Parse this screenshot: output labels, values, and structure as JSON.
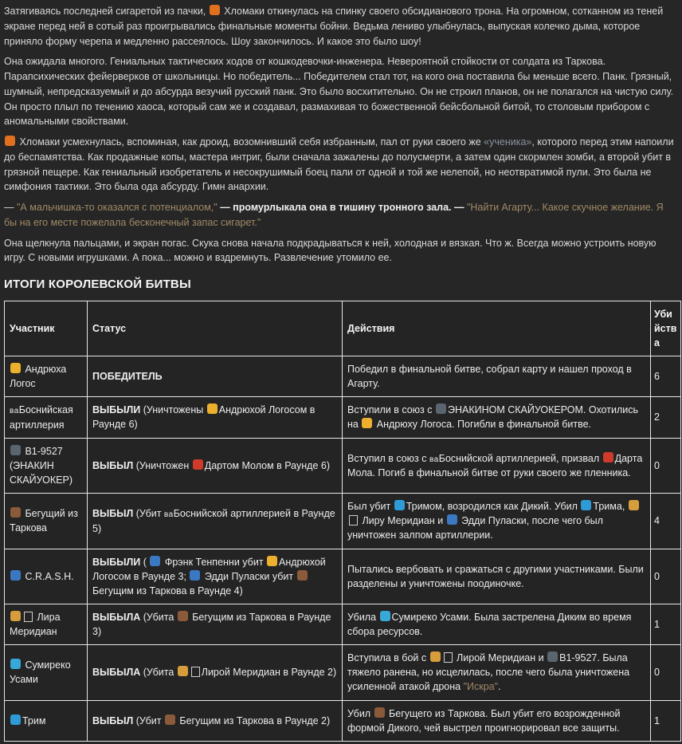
{
  "colors": {
    "background": "#262626",
    "outer_edge": "#161616",
    "body_text": "#d9d9d9",
    "bold_text": "#f0f0f0",
    "quote_text": "#a08a66",
    "link_text": "#8b92a1",
    "table_border": "#e8e8e8"
  },
  "story": {
    "paragraphs": [
      {
        "segments": [
          {
            "text": "Затягиваясь последней сигаретой из пачки, "
          },
          {
            "emoji": "🎃",
            "name": "pumpkin-emoji"
          },
          {
            "text": " Хломаки откинулась на спинку своего обсидианового трона. На огромном, сотканном из теней экране перед ней в сотый раз проигрывались финальные моменты бойни. Ведьма лениво улыбнулась, выпуская колечко дыма, которое приняло форму черепа и медленно рассеялось. Шоу закончилось. И какое это было шоу!"
          }
        ]
      },
      {
        "segments": [
          {
            "text": "Она ожидала многого. Гениальных тактических ходов от кошкодевочки-инженера. Невероятной стойкости от солдата из Таркова. Парапсихических фейерверков от школьницы. Но победитель... Победителем стал тот, на кого она поставила бы меньше всего. Панк. Грязный, шумный, непредсказуемый и до абсурда везучий русский панк. Это было восхитительно. Он не строил планов, он не полагался на чистую силу. Он просто плыл по течению хаоса, который сам же и создавал, размахивая то божественной бейсбольной битой, то столовым прибором с аномальными свойствами."
          }
        ]
      },
      {
        "segments": [
          {
            "emoji": "🎃",
            "name": "pumpkin-emoji"
          },
          {
            "text": " Хломаки усмехнулась, вспоминая, как дроид, возомнивший себя избранным, пал от руки своего же "
          },
          {
            "text": "«ученика»",
            "style": "link",
            "name": "inline-link"
          },
          {
            "text": ", которого перед этим напоили до беспамятства. Как продажные копы, мастера интриг, были сначала зажалены до полусмерти, а затем один скормлен зомби, а второй убит в грязной пещере. Как гениальный изобретатель и несокрушимый боец пали от одной и той же нелепой, но неотвратимой пули. Это была не симфония тактики. Это была ода абсурду. Гимн анархии."
          }
        ]
      },
      {
        "segments": [
          {
            "text": "— "
          },
          {
            "text": "\"А мальчишка-то оказался с потенциалом,\"",
            "style": "quote"
          },
          {
            "text": " — промурлыкала она в тишину тронного зала. — ",
            "style": "bold"
          },
          {
            "text": "\"Найти Агарту... Какое скучное желание. Я бы на его месте пожелала бесконечный запас сигарет.\"",
            "style": "quote"
          }
        ]
      },
      {
        "segments": [
          {
            "text": "Она щелкнула пальцами, и экран погас. Скука снова начала подкрадываться к ней, холодная и вязкая. Что ж. Всегда можно устроить новую игру. С новыми игрушками. А пока... можно и вздремнуть. Развлечение утомило ее."
          }
        ]
      }
    ]
  },
  "table": {
    "title": "ИТОГИ КОРОЛЕВСКОЙ БИТВЫ",
    "columns": [
      "Участник",
      "Статус",
      "Действия",
      "Убийства"
    ],
    "rows": [
      {
        "participant": [
          {
            "emoji": "🍺",
            "name": "beer-emoji"
          },
          {
            "text": " Андрюха Логос"
          }
        ],
        "status": [
          {
            "text": "ПОБЕДИТЕЛЬ",
            "style": "bold"
          }
        ],
        "actions": [
          {
            "text": "Победил в финальной битве, собрал карту и нашел проход в Агарту."
          }
        ],
        "kills": "6"
      },
      {
        "participant": [
          {
            "text": "ва",
            "style": "flag",
            "name": "flag-ba"
          },
          {
            "text": "Боснийская артиллерия"
          }
        ],
        "status": [
          {
            "text": "ВЫБЫЛИ",
            "style": "bold"
          },
          {
            "text": " (Уничтожены "
          },
          {
            "emoji": "🍺",
            "name": "beer-emoji"
          },
          {
            "text": "Андрюхой Логосом в Раунде 6)"
          }
        ],
        "actions": [
          {
            "text": "Вступили в союз с "
          },
          {
            "emoji": "🤖",
            "name": "robot-emoji"
          },
          {
            "text": "ЭНАКИНОМ СКАЙУОКЕРОМ. Охотились на "
          },
          {
            "emoji": "🍺",
            "name": "beer-emoji"
          },
          {
            "text": " Андрюху Логоса. Погибли в финальной битве."
          }
        ],
        "kills": "2"
      },
      {
        "participant": [
          {
            "emoji": "🤖",
            "name": "robot-emoji"
          },
          {
            "text": " B1-9527 (ЭНАКИН СКАЙУОКЕР)"
          }
        ],
        "status": [
          {
            "text": "ВЫБЫЛ",
            "style": "bold"
          },
          {
            "text": " (Уничтожен "
          },
          {
            "emoji": "👿",
            "name": "devil-emoji"
          },
          {
            "text": "Дартом Молом в Раунде 6)"
          }
        ],
        "actions": [
          {
            "text": "Вступил в союз с "
          },
          {
            "text": "ва",
            "style": "flag",
            "name": "flag-ba"
          },
          {
            "text": "Боснийской артиллерией, призвал "
          },
          {
            "emoji": "👿",
            "name": "devil-emoji"
          },
          {
            "text": "Дарта Мола. Погиб в финальной битве от руки своего же пленника."
          }
        ],
        "kills": "0"
      },
      {
        "participant": [
          {
            "emoji": "🐻",
            "name": "bear-emoji"
          },
          {
            "text": " Бегущий из Таркова"
          }
        ],
        "status": [
          {
            "text": "ВЫБЫЛ",
            "style": "bold"
          },
          {
            "text": " (Убит "
          },
          {
            "text": "ва",
            "style": "flag",
            "name": "flag-ba"
          },
          {
            "text": "Боснийской артиллерией в Раунде 5)"
          }
        ],
        "actions": [
          {
            "text": "Был убит "
          },
          {
            "emoji": "🌊",
            "name": "wave-emoji"
          },
          {
            "text": "Тримом, возродился как Дикий. Убил "
          },
          {
            "emoji": "🌊",
            "name": "wave-emoji"
          },
          {
            "text": "Трима, "
          },
          {
            "emoji": "🐎",
            "name": "horse-emoji"
          },
          {
            "tofu": true
          },
          {
            "text": " Лиру Меридиан и "
          },
          {
            "emoji": "🚔",
            "name": "police-car-emoji"
          },
          {
            "text": " Эдди Пуласки, после чего был уничтожен залпом артиллерии."
          }
        ],
        "kills": "4"
      },
      {
        "participant": [
          {
            "emoji": "🚔",
            "name": "police-car-emoji"
          },
          {
            "text": " C.R.A.S.H."
          }
        ],
        "status": [
          {
            "text": "ВЫБЫЛИ",
            "style": "bold"
          },
          {
            "text": " ( "
          },
          {
            "emoji": "🚔",
            "name": "police-car-emoji"
          },
          {
            "text": " Фрэнк Тенпенни убит "
          },
          {
            "emoji": "🍺",
            "name": "beer-emoji"
          },
          {
            "text": "Андрюхой Логосом в Раунде 3; "
          },
          {
            "emoji": "🚔",
            "name": "police-car-emoji"
          },
          {
            "text": " Эдди Пуласки убит "
          },
          {
            "emoji": "🐻",
            "name": "bear-emoji"
          },
          {
            "text": "Бегущим из Таркова в Раунде 4)"
          }
        ],
        "actions": [
          {
            "text": "Пытались вербовать и сражаться с другими участниками. Были разделены и уничтожены поодиночке."
          }
        ],
        "kills": "0"
      },
      {
        "participant": [
          {
            "emoji": "🐎",
            "name": "horse-emoji"
          },
          {
            "tofu": true
          },
          {
            "text": " Лира Меридиан"
          }
        ],
        "status": [
          {
            "text": "ВЫБЫЛА",
            "style": "bold"
          },
          {
            "text": " (Убита "
          },
          {
            "emoji": "🐻",
            "name": "bear-emoji"
          },
          {
            "text": " Бегущим из Таркова в Раунде 3)"
          }
        ],
        "actions": [
          {
            "text": "Убила "
          },
          {
            "emoji": "📱",
            "name": "phone-emoji"
          },
          {
            "text": "Сумиреко Усами. Была застрелена Диким во время сбора ресурсов."
          }
        ],
        "kills": "1"
      },
      {
        "participant": [
          {
            "emoji": "📱",
            "name": "phone-emoji"
          },
          {
            "text": " Сумиреко Усами"
          }
        ],
        "status": [
          {
            "text": "ВЫБЫЛА",
            "style": "bold"
          },
          {
            "text": " (Убита "
          },
          {
            "emoji": "🐎",
            "name": "horse-emoji"
          },
          {
            "tofu": true
          },
          {
            "text": "Лирой Меридиан в Раунде 2)"
          }
        ],
        "actions": [
          {
            "text": "Вступила в бой с "
          },
          {
            "emoji": "🐎",
            "name": "horse-emoji"
          },
          {
            "tofu": true
          },
          {
            "text": " Лирой Меридиан и "
          },
          {
            "emoji": "🤖",
            "name": "robot-emoji"
          },
          {
            "text": "B1-9527. Была тяжело ранена, но исцелилась, после чего была уничтожена усиленной атакой дрона "
          },
          {
            "text": "\"Искра\"",
            "style": "quote"
          },
          {
            "text": "."
          }
        ],
        "kills": "0"
      },
      {
        "participant": [
          {
            "emoji": "🌊",
            "name": "wave-emoji"
          },
          {
            "text": "Трим"
          }
        ],
        "status": [
          {
            "text": "ВЫБЫЛ",
            "style": "bold"
          },
          {
            "text": " (Убит "
          },
          {
            "emoji": "🐻",
            "name": "bear-emoji"
          },
          {
            "text": " Бегущим из Таркова в Раунде 2)"
          }
        ],
        "actions": [
          {
            "text": "Убил "
          },
          {
            "emoji": "🐻",
            "name": "bear-emoji"
          },
          {
            "text": " Бегущего из Таркова. Был убит его возрожденной формой Дикого, чей выстрел проигнорировал все защиты."
          }
        ],
        "kills": "1"
      }
    ]
  }
}
